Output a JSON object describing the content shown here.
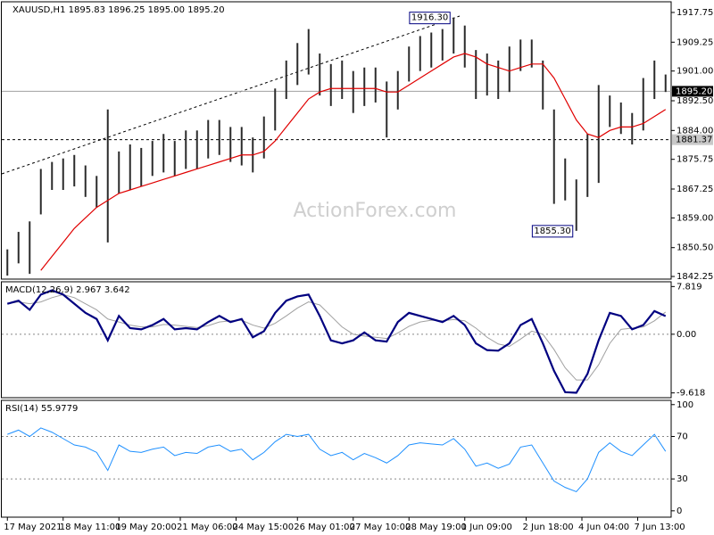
{
  "chart_data": [
    {
      "type": "ohlc",
      "title": "XAUUSD,H1 1895.83 1896.25 1895.00 1895.20",
      "watermark": "ActionForex.com",
      "bar_color": "#2b2b2b",
      "ma_color": "#e00000",
      "high": [
        1850,
        1855,
        1858,
        1873,
        1875,
        1876,
        1877,
        1874,
        1871,
        1890,
        1878,
        1880,
        1879,
        1881,
        1883,
        1881,
        1884,
        1884,
        1887,
        1887,
        1885,
        1885,
        1882,
        1888,
        1896,
        1904,
        1909,
        1913,
        1906,
        1903,
        1904,
        1901,
        1902,
        1902,
        1898,
        1901,
        1908,
        1911,
        1912,
        1913,
        1916.3,
        1914,
        1907,
        1906,
        1904,
        1908,
        1910,
        1910,
        1904,
        1890,
        1876,
        1870,
        1883,
        1897,
        1894,
        1892,
        1889,
        1899,
        1904,
        1900
      ],
      "low": [
        1842.5,
        1846,
        1843,
        1860,
        1867,
        1867,
        1868,
        1865,
        1862,
        1852,
        1866,
        1867,
        1868,
        1871,
        1872,
        1871,
        1873,
        1873,
        1876,
        1877,
        1875,
        1874,
        1872,
        1876,
        1884,
        1893,
        1897,
        1900,
        1894,
        1891,
        1893,
        1889,
        1891,
        1892,
        1882,
        1890,
        1898,
        1901,
        1902,
        1904,
        1906,
        1902,
        1893,
        1894,
        1893,
        1895,
        1901,
        1902,
        1890,
        1863,
        1864,
        1855.3,
        1865,
        1869,
        1885,
        1883,
        1880,
        1884,
        1893,
        1895
      ],
      "ma": [
        null,
        null,
        null,
        1844,
        1848,
        1852,
        1856,
        1859,
        1862,
        1864,
        1866,
        1867,
        1868,
        1869,
        1870,
        1871,
        1872,
        1873,
        1874,
        1875,
        1876,
        1877,
        1877,
        1878,
        1881,
        1885,
        1889,
        1893,
        1895,
        1896,
        1896,
        1896,
        1896,
        1896,
        1895,
        1895,
        1897,
        1899,
        1901,
        1903,
        1905,
        1906,
        1905,
        1903,
        1902,
        1901,
        1902,
        1903,
        1903,
        1899,
        1893,
        1887,
        1883,
        1882,
        1884,
        1885,
        1885,
        1886,
        1888,
        1890
      ],
      "annotations": [
        {
          "x": 40,
          "value": 1916.3,
          "label": "1916.30"
        },
        {
          "x": 51,
          "value": 1855.3,
          "label": "1855.30"
        }
      ],
      "hlines": [
        {
          "value": 1895.2,
          "label": "1895.20",
          "style": "solid"
        },
        {
          "value": 1881.37,
          "label": "1881.37",
          "style": "dashed"
        }
      ],
      "ylim": [
        1841.5,
        1920.8
      ],
      "yticks": [
        1842.25,
        {
          "value": 1850.5,
          "label": "1850.50"
        },
        {
          "value": 1859,
          "label": "1859.00"
        },
        1867.25,
        1875.75,
        {
          "value": 1884,
          "label": "1884.00"
        },
        {
          "value": 1892.5,
          "label": "1892.50"
        },
        {
          "value": 1901,
          "label": "1901.00"
        },
        1909.25,
        1917.75
      ]
    },
    {
      "type": "macd",
      "title": "MACD(12,26,9) 2.967 3.642",
      "macd_color": "#000080",
      "signal_color": "#a0a0a0",
      "macd": [
        5,
        5.5,
        4,
        6.5,
        7.2,
        6.5,
        5,
        3.5,
        2.5,
        -1,
        3,
        1,
        0.8,
        1.5,
        2.5,
        0.8,
        1,
        0.8,
        2,
        3,
        2,
        2.5,
        -0.5,
        0.5,
        3.5,
        5.5,
        6.2,
        6.5,
        3,
        -1,
        -1.5,
        -1,
        0.3,
        -1,
        -1.2,
        2,
        3.5,
        3,
        2.5,
        2,
        3,
        1.5,
        -1.5,
        -2.6,
        -2.7,
        -1.5,
        1.5,
        2.5,
        -1.5,
        -6,
        -9.5,
        -9.6,
        -6.5,
        -1,
        3.5,
        3,
        0.8,
        1.5,
        3.8,
        2.967
      ],
      "signal": [
        5,
        5.3,
        5,
        5.3,
        6,
        6.5,
        6,
        5,
        4,
        2.5,
        2,
        1.5,
        1.2,
        1.2,
        1.6,
        1.5,
        1.3,
        1.1,
        1.4,
        2,
        2.2,
        2.3,
        1.5,
        1,
        1.8,
        3,
        4.3,
        5.3,
        4.8,
        3,
        1.2,
        0,
        -0.3,
        -0.5,
        -0.7,
        0.2,
        1.3,
        2,
        2.3,
        2.2,
        2.4,
        2.2,
        1,
        -0.5,
        -1.6,
        -2,
        -0.8,
        0.5,
        0,
        -2.5,
        -5.5,
        -7.5,
        -7.5,
        -5,
        -1.5,
        0.8,
        1,
        1.2,
        2.2,
        3.642
      ],
      "levels": [
        0
      ],
      "ylim": [
        -10.4,
        8.6
      ],
      "yticks": [
        7.819,
        {
          "value": 0,
          "label": "0.00"
        },
        -9.618
      ]
    },
    {
      "type": "line",
      "title": "RSI(14) 55.9779",
      "color": "#1e90ff",
      "values": [
        72,
        76,
        70,
        78,
        74,
        68,
        62,
        60,
        55,
        38,
        62,
        56,
        55,
        58,
        60,
        52,
        55,
        54,
        60,
        62,
        56,
        58,
        48,
        55,
        65,
        72,
        70,
        72,
        58,
        52,
        55,
        48,
        54,
        50,
        45,
        52,
        62,
        64,
        63,
        62,
        68,
        58,
        42,
        45,
        40,
        44,
        60,
        62,
        45,
        28,
        22,
        18,
        30,
        55,
        64,
        56,
        52,
        62,
        72,
        55.9779
      ],
      "levels": [
        70,
        30
      ],
      "ylim": [
        -6,
        104
      ],
      "yticks": [
        100,
        70,
        30,
        0
      ],
      "xticks": [
        {
          "value": 0,
          "label": "17 May 2021"
        },
        {
          "value": 5,
          "label": "18 May 11:00"
        },
        {
          "value": 10,
          "label": "19 May 20:00"
        },
        {
          "value": 15.5,
          "label": "21 May 06:00"
        },
        {
          "value": 20.5,
          "label": "24 May 15:00"
        },
        {
          "value": 26,
          "label": "26 May 01:00"
        },
        {
          "value": 31,
          "label": "27 May 10:00"
        },
        {
          "value": 36,
          "label": "28 May 19:00"
        },
        {
          "value": 41,
          "label": "1 Jun 09:00"
        },
        {
          "value": 46.5,
          "label": "2 Jun 18:00"
        },
        {
          "value": 51.5,
          "label": "4 Jun 04:00"
        },
        {
          "value": 56.5,
          "label": "7 Jun 13:00"
        }
      ]
    }
  ]
}
